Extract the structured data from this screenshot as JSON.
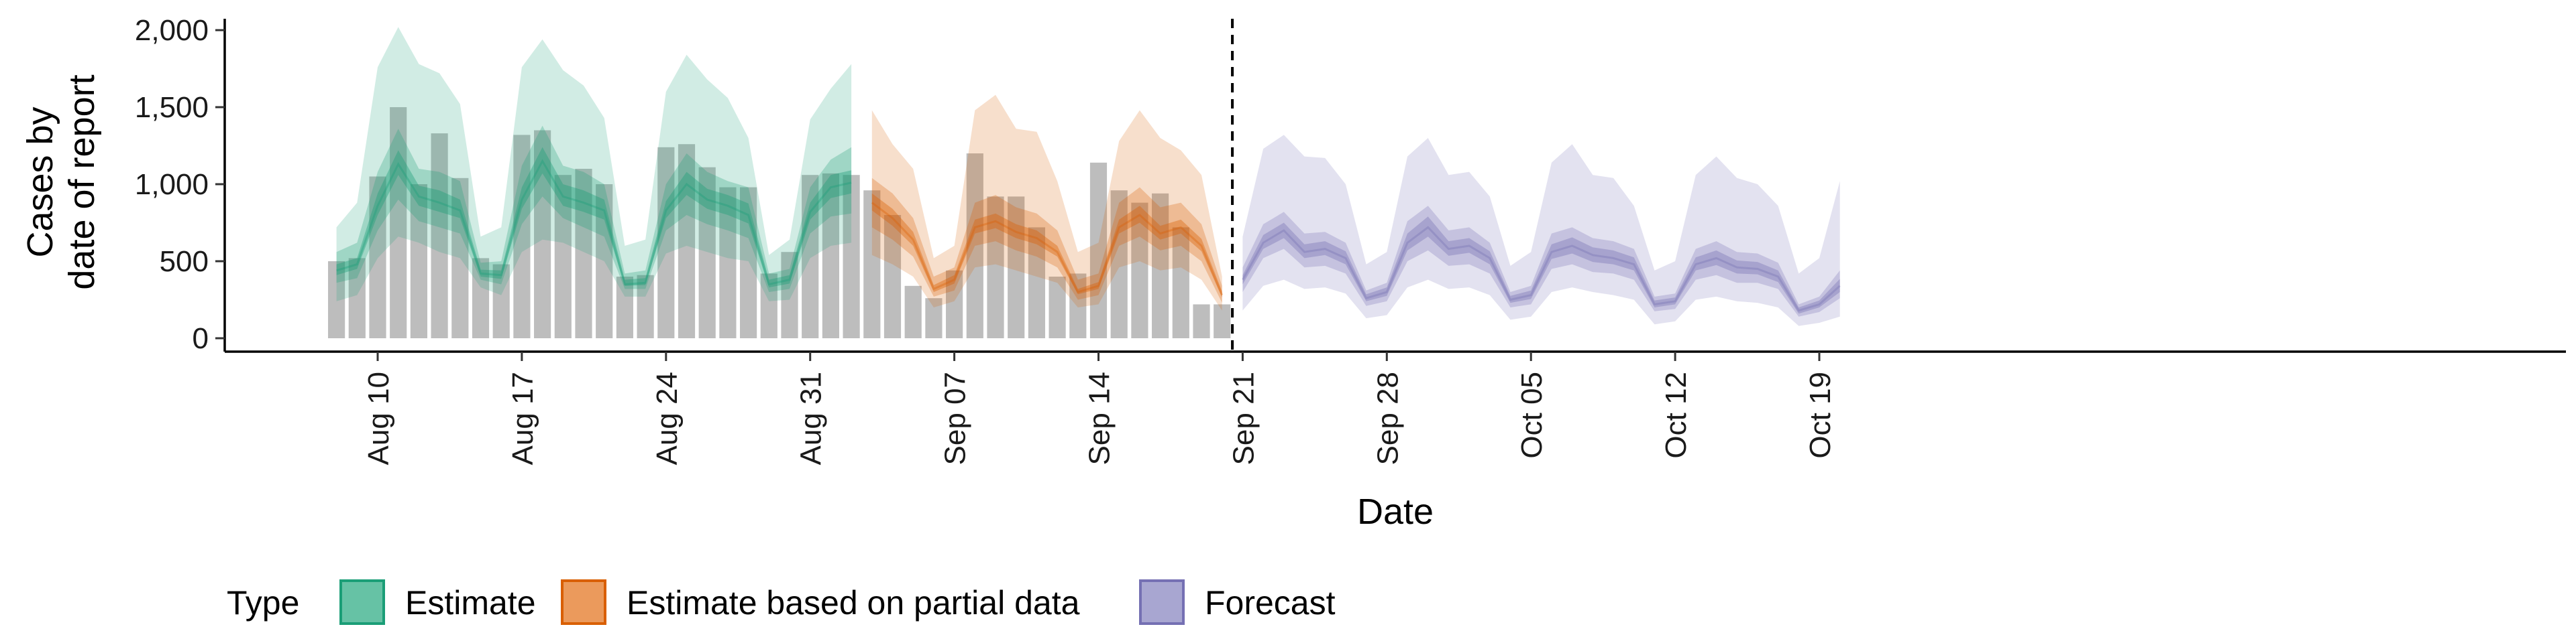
{
  "chart_data": {
    "type": "area",
    "title": "",
    "xlabel": "Date",
    "ylabel_lines": [
      "Cases by",
      "date of report"
    ],
    "ylim": [
      0,
      2000
    ],
    "y_ticks": [
      0,
      500,
      1000,
      1500,
      2000
    ],
    "y_tick_labels": [
      "0",
      "500",
      "1,000",
      "1,500",
      "2,000"
    ],
    "x_tick_labels": [
      "Aug 10",
      "Aug 17",
      "Aug 24",
      "Aug 31",
      "Sep 07",
      "Sep 14",
      "Sep 21",
      "Sep 28",
      "Oct 05",
      "Oct 12",
      "Oct 19"
    ],
    "x_ticks": [
      "2020-08-10",
      "2020-08-17",
      "2020-08-24",
      "2020-08-31",
      "2020-09-07",
      "2020-09-14",
      "2020-09-21",
      "2020-09-28",
      "2020-10-05",
      "2020-10-12",
      "2020-10-19"
    ],
    "x_range": [
      "2020-08-05",
      "2020-10-24"
    ],
    "vline_date": "2020-09-20",
    "reported_cases": {
      "dates": [
        "2020-08-08",
        "2020-08-09",
        "2020-08-10",
        "2020-08-11",
        "2020-08-12",
        "2020-08-13",
        "2020-08-14",
        "2020-08-15",
        "2020-08-16",
        "2020-08-17",
        "2020-08-18",
        "2020-08-19",
        "2020-08-20",
        "2020-08-21",
        "2020-08-22",
        "2020-08-23",
        "2020-08-24",
        "2020-08-25",
        "2020-08-26",
        "2020-08-27",
        "2020-08-28",
        "2020-08-29",
        "2020-08-30",
        "2020-08-31",
        "2020-09-01",
        "2020-09-02",
        "2020-09-03",
        "2020-09-04",
        "2020-09-05",
        "2020-09-06",
        "2020-09-07",
        "2020-09-08",
        "2020-09-09",
        "2020-09-10",
        "2020-09-11",
        "2020-09-12",
        "2020-09-13",
        "2020-09-14",
        "2020-09-15",
        "2020-09-16",
        "2020-09-17",
        "2020-09-18",
        "2020-09-19",
        "2020-09-20"
      ],
      "values": [
        500,
        520,
        1050,
        1500,
        1000,
        1330,
        1040,
        520,
        480,
        1320,
        1350,
        1060,
        1100,
        1000,
        400,
        410,
        1240,
        1260,
        1110,
        980,
        980,
        420,
        560,
        1060,
        1070,
        1060,
        960,
        800,
        340,
        260,
        440,
        1200,
        920,
        920,
        720,
        400,
        420,
        1140,
        960,
        880,
        940,
        720,
        220,
        220
      ]
    },
    "series": [
      {
        "name": "Estimate",
        "color": "#1b9e77",
        "dates": [
          "2020-08-08",
          "2020-08-09",
          "2020-08-10",
          "2020-08-11",
          "2020-08-12",
          "2020-08-13",
          "2020-08-14",
          "2020-08-15",
          "2020-08-16",
          "2020-08-17",
          "2020-08-18",
          "2020-08-19",
          "2020-08-20",
          "2020-08-21",
          "2020-08-22",
          "2020-08-23",
          "2020-08-24",
          "2020-08-25",
          "2020-08-26",
          "2020-08-27",
          "2020-08-28",
          "2020-08-29",
          "2020-08-30",
          "2020-08-31",
          "2020-09-01",
          "2020-09-02"
        ],
        "median": [
          440,
          480,
          860,
          1130,
          920,
          880,
          830,
          420,
          410,
          900,
          1150,
          920,
          880,
          830,
          350,
          360,
          830,
          1000,
          900,
          860,
          800,
          350,
          380,
          820,
          980,
          1010
        ],
        "lower_90": [
          240,
          280,
          520,
          660,
          620,
          560,
          520,
          330,
          280,
          560,
          640,
          620,
          560,
          500,
          270,
          270,
          550,
          600,
          560,
          520,
          500,
          240,
          250,
          520,
          600,
          620
        ],
        "upper_90": [
          720,
          880,
          1760,
          2020,
          1780,
          1720,
          1520,
          660,
          720,
          1760,
          1940,
          1740,
          1640,
          1430,
          600,
          640,
          1600,
          1840,
          1680,
          1560,
          1300,
          540,
          640,
          1420,
          1620,
          1780
        ],
        "lower_50": [
          360,
          390,
          700,
          900,
          760,
          720,
          680,
          380,
          350,
          740,
          920,
          780,
          720,
          660,
          320,
          320,
          700,
          800,
          740,
          700,
          650,
          300,
          320,
          680,
          790,
          810
        ],
        "upper_50": [
          560,
          620,
          1080,
          1360,
          1100,
          1080,
          1020,
          490,
          500,
          1120,
          1380,
          1120,
          1080,
          1000,
          420,
          440,
          1000,
          1200,
          1080,
          1020,
          980,
          420,
          450,
          980,
          1160,
          1240
        ],
        "lower_20": [
          410,
          450,
          800,
          1060,
          860,
          820,
          780,
          400,
          385,
          840,
          1070,
          860,
          820,
          770,
          340,
          345,
          780,
          930,
          840,
          800,
          745,
          330,
          355,
          770,
          910,
          940
        ],
        "upper_20": [
          480,
          520,
          940,
          1220,
          990,
          960,
          900,
          445,
          440,
          980,
          1240,
          1000,
          960,
          900,
          380,
          390,
          890,
          1080,
          970,
          930,
          875,
          380,
          410,
          880,
          1060,
          1090
        ]
      },
      {
        "name": "Estimate based on partial data",
        "color": "#d95f02",
        "dates": [
          "2020-09-03",
          "2020-09-04",
          "2020-09-05",
          "2020-09-06",
          "2020-09-07",
          "2020-09-08",
          "2020-09-09",
          "2020-09-10",
          "2020-09-11",
          "2020-09-12",
          "2020-09-13",
          "2020-09-14",
          "2020-09-15",
          "2020-09-16",
          "2020-09-17",
          "2020-09-18",
          "2020-09-19",
          "2020-09-20"
        ],
        "median": [
          880,
          780,
          640,
          320,
          380,
          720,
          760,
          690,
          650,
          560,
          300,
          340,
          720,
          800,
          680,
          720,
          600,
          280
        ],
        "lower_90": [
          540,
          480,
          400,
          200,
          240,
          460,
          480,
          440,
          400,
          360,
          200,
          220,
          460,
          500,
          440,
          460,
          380,
          180
        ],
        "upper_90": [
          1480,
          1260,
          1100,
          520,
          600,
          1480,
          1580,
          1360,
          1340,
          1020,
          560,
          620,
          1280,
          1480,
          1300,
          1220,
          1060,
          400
        ],
        "lower_50": [
          720,
          640,
          530,
          270,
          310,
          600,
          630,
          570,
          530,
          460,
          250,
          280,
          600,
          660,
          570,
          600,
          500,
          230
        ],
        "upper_50": [
          1040,
          940,
          780,
          400,
          460,
          880,
          930,
          850,
          810,
          700,
          380,
          420,
          880,
          980,
          850,
          880,
          740,
          340
        ],
        "lower_20": [
          830,
          730,
          600,
          300,
          355,
          680,
          715,
          650,
          610,
          530,
          285,
          320,
          680,
          750,
          640,
          680,
          565,
          265
        ],
        "upper_20": [
          940,
          840,
          690,
          345,
          410,
          770,
          810,
          740,
          700,
          600,
          320,
          365,
          770,
          860,
          730,
          770,
          645,
          305
        ]
      },
      {
        "name": "Forecast",
        "color": "#7570b3",
        "dates": [
          "2020-09-21",
          "2020-09-22",
          "2020-09-23",
          "2020-09-24",
          "2020-09-25",
          "2020-09-26",
          "2020-09-27",
          "2020-09-28",
          "2020-09-29",
          "2020-09-30",
          "2020-10-01",
          "2020-10-02",
          "2020-10-03",
          "2020-10-04",
          "2020-10-05",
          "2020-10-06",
          "2020-10-07",
          "2020-10-08",
          "2020-10-09",
          "2020-10-10",
          "2020-10-11",
          "2020-10-12",
          "2020-10-13",
          "2020-10-14",
          "2020-10-15",
          "2020-10-16",
          "2020-10-17",
          "2020-10-18",
          "2020-10-19",
          "2020-10-20"
        ],
        "median": [
          380,
          620,
          700,
          560,
          580,
          520,
          260,
          300,
          620,
          720,
          580,
          600,
          520,
          250,
          280,
          560,
          600,
          540,
          520,
          480,
          220,
          240,
          480,
          520,
          460,
          450,
          400,
          180,
          220,
          340
        ],
        "lower_90": [
          180,
          340,
          380,
          320,
          330,
          290,
          130,
          150,
          330,
          380,
          320,
          330,
          280,
          120,
          140,
          300,
          330,
          300,
          280,
          250,
          90,
          110,
          250,
          270,
          240,
          230,
          200,
          80,
          100,
          140
        ],
        "upper_90": [
          660,
          1230,
          1320,
          1180,
          1170,
          1000,
          480,
          560,
          1180,
          1300,
          1060,
          1080,
          920,
          470,
          560,
          1140,
          1260,
          1060,
          1040,
          860,
          440,
          500,
          1060,
          1180,
          1040,
          1000,
          860,
          420,
          520,
          1020
        ],
        "lower_50": [
          300,
          520,
          580,
          460,
          470,
          420,
          210,
          240,
          500,
          570,
          470,
          480,
          420,
          200,
          220,
          450,
          480,
          430,
          420,
          380,
          175,
          190,
          380,
          410,
          360,
          360,
          320,
          140,
          170,
          260
        ],
        "upper_50": [
          460,
          740,
          820,
          680,
          690,
          620,
          310,
          360,
          760,
          860,
          700,
          720,
          620,
          300,
          340,
          680,
          720,
          650,
          630,
          580,
          270,
          290,
          580,
          630,
          560,
          550,
          490,
          220,
          270,
          440
        ],
        "lower_20": [
          350,
          580,
          650,
          520,
          540,
          480,
          240,
          275,
          570,
          660,
          535,
          555,
          480,
          230,
          255,
          515,
          550,
          495,
          480,
          440,
          200,
          220,
          440,
          475,
          420,
          415,
          365,
          160,
          200,
          300
        ],
        "upper_20": [
          410,
          670,
          750,
          610,
          630,
          565,
          285,
          330,
          680,
          790,
          630,
          650,
          565,
          275,
          310,
          610,
          655,
          590,
          570,
          525,
          245,
          265,
          525,
          570,
          505,
          495,
          440,
          200,
          245,
          385
        ]
      }
    ],
    "legend": {
      "title": "Type",
      "position": "bottom",
      "items": [
        {
          "label": "Estimate",
          "fill": "#66c2a5",
          "stroke": "#1b9e77"
        },
        {
          "label": "Estimate based on partial data",
          "fill": "#eb9a5c",
          "stroke": "#d95f02"
        },
        {
          "label": "Forecast",
          "fill": "#a8a6d1",
          "stroke": "#7570b3"
        }
      ]
    },
    "grid": false
  }
}
